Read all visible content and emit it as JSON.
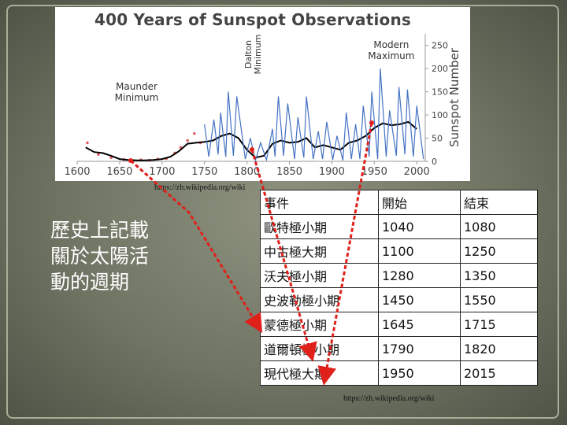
{
  "chart_data": {
    "type": "line",
    "title": "400 Years of Sunspot Observations",
    "ylabel": "Sunspot Number",
    "xlim": [
      1600,
      2010
    ],
    "ylim": [
      0,
      275
    ],
    "x_ticks": [
      1600,
      1650,
      1700,
      1750,
      1800,
      1850,
      1900,
      1950,
      2000
    ],
    "y_ticks": [
      0,
      50,
      100,
      150,
      200,
      250
    ],
    "annotations": [
      {
        "text": "Maunder Minimum",
        "x": 1670
      },
      {
        "text": "Dalton Minimum",
        "x": 1805
      },
      {
        "text": "Modern Maximum",
        "x": 1970
      }
    ],
    "series": [
      {
        "color": "#000000",
        "x": [
          1610,
          1620,
          1630,
          1640,
          1650,
          1660,
          1670,
          1680,
          1690,
          1700,
          1710,
          1720,
          1730,
          1740,
          1750,
          1760,
          1770,
          1780,
          1790,
          1800,
          1810,
          1820,
          1830,
          1840,
          1850,
          1860,
          1870,
          1880,
          1890,
          1900,
          1910,
          1920,
          1930,
          1940,
          1950,
          1960,
          1970,
          1980,
          1990,
          2000
        ],
        "values": [
          30,
          20,
          18,
          12,
          5,
          3,
          2,
          2,
          3,
          5,
          10,
          22,
          38,
          40,
          42,
          45,
          55,
          60,
          50,
          25,
          8,
          12,
          38,
          45,
          40,
          42,
          50,
          30,
          35,
          30,
          25,
          40,
          45,
          55,
          72,
          82,
          78,
          80,
          85,
          70
        ]
      },
      {
        "color": "#4472c4",
        "x": [
          1750,
          1755,
          1761,
          1766,
          1769,
          1775,
          1778,
          1784,
          1788,
          1798,
          1804,
          1810,
          1816,
          1823,
          1830,
          1833,
          1837,
          1843,
          1848,
          1856,
          1860,
          1867,
          1870,
          1878,
          1884,
          1889,
          1894,
          1901,
          1906,
          1913,
          1917,
          1923,
          1928,
          1933,
          1937,
          1944,
          1947,
          1954,
          1957,
          1964,
          1968,
          1976,
          1979,
          1986,
          1989,
          1996,
          2000,
          2008
        ],
        "values": [
          80,
          10,
          90,
          15,
          105,
          10,
          150,
          12,
          140,
          5,
          50,
          2,
          40,
          3,
          70,
          10,
          140,
          12,
          125,
          5,
          95,
          8,
          140,
          5,
          65,
          5,
          85,
          3,
          55,
          2,
          105,
          5,
          80,
          5,
          120,
          10,
          150,
          5,
          200,
          10,
          110,
          12,
          160,
          15,
          155,
          10,
          120,
          5
        ]
      }
    ]
  },
  "source_top": "https://zh.wikipedia.org/wiki",
  "source_bottom": "https://zh.wikipedia.org/wiki",
  "heading_lines": [
    "歷史上記載",
    "關於太陽活",
    "動的週期"
  ],
  "table": {
    "header": [
      "事件",
      "開始",
      "結束"
    ],
    "rows": [
      [
        "歐特極小期",
        "1040",
        "1080"
      ],
      [
        "中古極大期",
        "1100",
        "1250"
      ],
      [
        "沃夫極小期",
        "1280",
        "1350"
      ],
      [
        "史波勒極小期",
        "1450",
        "1550"
      ],
      [
        "蒙德極小期",
        "1645",
        "1715"
      ],
      [
        "道爾頓極小期",
        "1790",
        "1820"
      ],
      [
        "現代極大期",
        "1950",
        "2015"
      ]
    ]
  },
  "colors": {
    "arrow": "#e0201a",
    "observed_series": "#4472c4",
    "average_series": "#000000",
    "early_points": "#e06060"
  }
}
